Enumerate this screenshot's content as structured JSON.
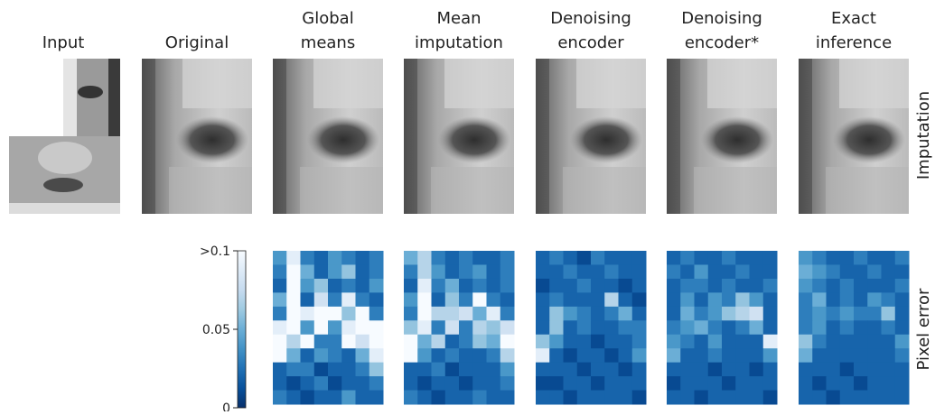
{
  "columns": [
    {
      "title": [
        "Input"
      ]
    },
    {
      "title": [
        "Original"
      ]
    },
    {
      "title": [
        "Global",
        "means"
      ]
    },
    {
      "title": [
        "Mean",
        "imputation"
      ]
    },
    {
      "title": [
        "Denoising",
        "encoder"
      ]
    },
    {
      "title": [
        "Denoising",
        "encoder*"
      ]
    },
    {
      "title": [
        "Exact",
        "inference"
      ]
    }
  ],
  "row_labels": [
    "Imputation",
    "Pixel error"
  ],
  "chart_data": {
    "type": "heatmap",
    "colormap": [
      "#08306b",
      "#08519c",
      "#2171b5",
      "#4292c6",
      "#6baed6",
      "#9ecae1",
      "#c6dbef",
      "#deebf7",
      "#f7fbff"
    ],
    "clim": [
      0,
      0.1
    ],
    "cticks": [
      0,
      0.05,
      {
        "value": 0.1,
        "label": ">0.1"
      }
    ],
    "heatmaps": [
      {
        "values": [
          [
            0.04,
            0.09,
            0.03,
            0.02,
            0.04,
            0.03,
            0.02,
            0.03
          ],
          [
            0.03,
            0.1,
            0.05,
            0.02,
            0.04,
            0.06,
            0.02,
            0.03
          ],
          [
            0.02,
            0.12,
            0.04,
            0.06,
            0.02,
            0.03,
            0.02,
            0.04
          ],
          [
            0.05,
            0.12,
            0.02,
            0.08,
            0.03,
            0.09,
            0.03,
            0.02
          ],
          [
            0.03,
            0.12,
            0.09,
            0.1,
            0.11,
            0.06,
            0.12,
            0.03
          ],
          [
            0.09,
            0.1,
            0.04,
            0.1,
            0.04,
            0.09,
            0.11,
            0.12
          ],
          [
            0.12,
            0.07,
            0.1,
            0.03,
            0.03,
            0.1,
            0.08,
            0.12
          ],
          [
            0.1,
            0.05,
            0.02,
            0.04,
            0.03,
            0.02,
            0.05,
            0.09
          ],
          [
            0.02,
            0.03,
            0.03,
            0.01,
            0.02,
            0.02,
            0.03,
            0.06
          ],
          [
            0.02,
            0.01,
            0.02,
            0.03,
            0.01,
            0.02,
            0.02,
            0.03
          ],
          [
            0.03,
            0.02,
            0.01,
            0.02,
            0.02,
            0.04,
            0.02,
            0.02
          ]
        ]
      },
      {
        "values": [
          [
            0.05,
            0.07,
            0.03,
            0.02,
            0.03,
            0.02,
            0.02,
            0.03
          ],
          [
            0.03,
            0.07,
            0.04,
            0.02,
            0.03,
            0.04,
            0.02,
            0.03
          ],
          [
            0.02,
            0.09,
            0.03,
            0.05,
            0.02,
            0.03,
            0.02,
            0.03
          ],
          [
            0.04,
            0.1,
            0.02,
            0.06,
            0.03,
            0.1,
            0.03,
            0.02
          ],
          [
            0.03,
            0.1,
            0.07,
            0.07,
            0.08,
            0.05,
            0.09,
            0.03
          ],
          [
            0.06,
            0.09,
            0.03,
            0.08,
            0.03,
            0.07,
            0.06,
            0.08
          ],
          [
            0.11,
            0.05,
            0.07,
            0.02,
            0.03,
            0.06,
            0.05,
            0.1
          ],
          [
            0.1,
            0.04,
            0.02,
            0.03,
            0.02,
            0.02,
            0.03,
            0.07
          ],
          [
            0.02,
            0.02,
            0.03,
            0.01,
            0.02,
            0.02,
            0.02,
            0.04
          ],
          [
            0.02,
            0.01,
            0.02,
            0.02,
            0.01,
            0.02,
            0.02,
            0.03
          ],
          [
            0.03,
            0.02,
            0.01,
            0.02,
            0.02,
            0.03,
            0.02,
            0.02
          ]
        ]
      },
      {
        "values": [
          [
            0.02,
            0.03,
            0.02,
            0.01,
            0.03,
            0.02,
            0.02,
            0.02
          ],
          [
            0.02,
            0.02,
            0.03,
            0.02,
            0.02,
            0.03,
            0.02,
            0.02
          ],
          [
            0.01,
            0.02,
            0.02,
            0.03,
            0.02,
            0.02,
            0.01,
            0.02
          ],
          [
            0.02,
            0.03,
            0.02,
            0.02,
            0.02,
            0.07,
            0.02,
            0.01
          ],
          [
            0.02,
            0.06,
            0.04,
            0.03,
            0.02,
            0.03,
            0.05,
            0.02
          ],
          [
            0.02,
            0.06,
            0.02,
            0.03,
            0.02,
            0.02,
            0.03,
            0.03
          ],
          [
            0.06,
            0.04,
            0.02,
            0.02,
            0.01,
            0.02,
            0.02,
            0.03
          ],
          [
            0.09,
            0.02,
            0.01,
            0.02,
            0.02,
            0.01,
            0.02,
            0.04
          ],
          [
            0.02,
            0.02,
            0.02,
            0.01,
            0.02,
            0.02,
            0.01,
            0.02
          ],
          [
            0.01,
            0.01,
            0.02,
            0.02,
            0.01,
            0.02,
            0.02,
            0.02
          ],
          [
            0.02,
            0.02,
            0.01,
            0.02,
            0.02,
            0.02,
            0.02,
            0.01
          ]
        ]
      },
      {
        "values": [
          [
            0.02,
            0.03,
            0.02,
            0.02,
            0.03,
            0.02,
            0.02,
            0.02
          ],
          [
            0.03,
            0.02,
            0.04,
            0.02,
            0.02,
            0.03,
            0.02,
            0.02
          ],
          [
            0.02,
            0.03,
            0.03,
            0.02,
            0.03,
            0.02,
            0.02,
            0.03
          ],
          [
            0.02,
            0.04,
            0.02,
            0.04,
            0.03,
            0.06,
            0.04,
            0.02
          ],
          [
            0.02,
            0.05,
            0.03,
            0.04,
            0.06,
            0.07,
            0.08,
            0.02
          ],
          [
            0.03,
            0.04,
            0.05,
            0.03,
            0.02,
            0.03,
            0.05,
            0.02
          ],
          [
            0.04,
            0.03,
            0.02,
            0.04,
            0.02,
            0.02,
            0.02,
            0.09
          ],
          [
            0.05,
            0.02,
            0.02,
            0.03,
            0.02,
            0.02,
            0.02,
            0.04
          ],
          [
            0.02,
            0.02,
            0.02,
            0.01,
            0.02,
            0.02,
            0.01,
            0.02
          ],
          [
            0.01,
            0.02,
            0.02,
            0.02,
            0.01,
            0.02,
            0.02,
            0.02
          ],
          [
            0.02,
            0.02,
            0.01,
            0.02,
            0.02,
            0.02,
            0.02,
            0.01
          ]
        ]
      },
      {
        "values": [
          [
            0.04,
            0.03,
            0.02,
            0.02,
            0.03,
            0.02,
            0.02,
            0.03
          ],
          [
            0.05,
            0.04,
            0.03,
            0.02,
            0.02,
            0.03,
            0.02,
            0.02
          ],
          [
            0.04,
            0.03,
            0.02,
            0.03,
            0.02,
            0.02,
            0.02,
            0.03
          ],
          [
            0.03,
            0.05,
            0.02,
            0.03,
            0.02,
            0.04,
            0.03,
            0.02
          ],
          [
            0.03,
            0.04,
            0.03,
            0.04,
            0.03,
            0.03,
            0.06,
            0.02
          ],
          [
            0.03,
            0.04,
            0.02,
            0.03,
            0.02,
            0.02,
            0.03,
            0.02
          ],
          [
            0.06,
            0.03,
            0.02,
            0.02,
            0.02,
            0.02,
            0.02,
            0.04
          ],
          [
            0.05,
            0.02,
            0.02,
            0.02,
            0.02,
            0.02,
            0.02,
            0.03
          ],
          [
            0.02,
            0.02,
            0.02,
            0.01,
            0.02,
            0.02,
            0.02,
            0.02
          ],
          [
            0.02,
            0.01,
            0.02,
            0.02,
            0.01,
            0.02,
            0.02,
            0.02
          ],
          [
            0.02,
            0.02,
            0.01,
            0.02,
            0.02,
            0.02,
            0.02,
            0.02
          ]
        ]
      }
    ]
  }
}
